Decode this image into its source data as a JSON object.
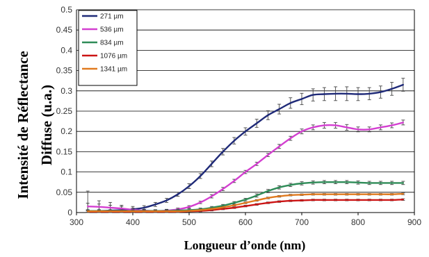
{
  "chart_data": {
    "type": "line",
    "xlabel": "Longueur d’onde (nm)",
    "ylabel_line1": "Intensité de Réflectance",
    "ylabel_line2": "Diffuse (u.a.)",
    "xlim": [
      300,
      900
    ],
    "ylim": [
      0,
      0.5
    ],
    "xticks": [
      "300",
      "400",
      "500",
      "600",
      "700",
      "800",
      "900"
    ],
    "yticks": [
      "0",
      "0.05",
      "0.1",
      "0.15",
      "0.2",
      "0.25",
      "0.3",
      "0.35",
      "0.4",
      "0.45",
      "0.5"
    ],
    "grid": "horizontal",
    "legend": "top-left",
    "series": [
      {
        "name": "271 µm",
        "color": "#1f2a78",
        "x": [
          320,
          340,
          360,
          380,
          400,
          420,
          440,
          460,
          480,
          500,
          520,
          540,
          560,
          580,
          600,
          620,
          640,
          660,
          680,
          700,
          720,
          740,
          760,
          780,
          800,
          820,
          840,
          860,
          880
        ],
        "y": [
          0.003,
          0.004,
          0.005,
          0.006,
          0.008,
          0.012,
          0.02,
          0.03,
          0.045,
          0.065,
          0.09,
          0.12,
          0.15,
          0.177,
          0.2,
          0.22,
          0.24,
          0.255,
          0.27,
          0.28,
          0.29,
          0.292,
          0.293,
          0.293,
          0.292,
          0.293,
          0.297,
          0.305,
          0.315
        ],
        "err": [
          0.05,
          0.025,
          0.02,
          0.012,
          0.007,
          0.005,
          0.005,
          0.005,
          0.005,
          0.006,
          0.006,
          0.007,
          0.008,
          0.008,
          0.009,
          0.01,
          0.011,
          0.012,
          0.013,
          0.014,
          0.015,
          0.016,
          0.017,
          0.017,
          0.016,
          0.015,
          0.015,
          0.016,
          0.016
        ]
      },
      {
        "name": "536 µm",
        "color": "#d33fd0",
        "x": [
          320,
          340,
          360,
          380,
          400,
          420,
          440,
          460,
          480,
          500,
          520,
          540,
          560,
          580,
          600,
          620,
          640,
          660,
          680,
          700,
          720,
          740,
          760,
          780,
          800,
          820,
          840,
          860,
          880
        ],
        "y": [
          0.015,
          0.014,
          0.012,
          0.01,
          0.007,
          0.005,
          0.004,
          0.005,
          0.008,
          0.014,
          0.025,
          0.04,
          0.058,
          0.078,
          0.1,
          0.12,
          0.142,
          0.163,
          0.183,
          0.2,
          0.21,
          0.215,
          0.215,
          0.21,
          0.205,
          0.205,
          0.21,
          0.215,
          0.222
        ],
        "err": [
          0.008,
          0.007,
          0.006,
          0.005,
          0.004,
          0.003,
          0.003,
          0.003,
          0.003,
          0.003,
          0.003,
          0.004,
          0.004,
          0.004,
          0.004,
          0.004,
          0.004,
          0.005,
          0.005,
          0.006,
          0.006,
          0.007,
          0.007,
          0.007,
          0.006,
          0.006,
          0.006,
          0.006,
          0.006
        ]
      },
      {
        "name": "834 µm",
        "color": "#2e8b57",
        "x": [
          320,
          340,
          360,
          380,
          400,
          420,
          440,
          460,
          480,
          500,
          520,
          540,
          560,
          580,
          600,
          620,
          640,
          660,
          680,
          700,
          720,
          740,
          760,
          780,
          800,
          820,
          840,
          860,
          880
        ],
        "y": [
          0.004,
          0.004,
          0.004,
          0.004,
          0.004,
          0.004,
          0.004,
          0.004,
          0.005,
          0.006,
          0.008,
          0.012,
          0.017,
          0.024,
          0.032,
          0.042,
          0.053,
          0.062,
          0.068,
          0.072,
          0.074,
          0.075,
          0.075,
          0.075,
          0.074,
          0.073,
          0.073,
          0.073,
          0.073
        ],
        "err": [
          0.003,
          0.003,
          0.003,
          0.003,
          0.003,
          0.003,
          0.003,
          0.003,
          0.003,
          0.003,
          0.003,
          0.003,
          0.003,
          0.003,
          0.003,
          0.004,
          0.004,
          0.004,
          0.004,
          0.004,
          0.004,
          0.004,
          0.004,
          0.004,
          0.004,
          0.004,
          0.004,
          0.004,
          0.004
        ]
      },
      {
        "name": "1076 µm",
        "color": "#cc1414",
        "x": [
          320,
          340,
          360,
          380,
          400,
          420,
          440,
          460,
          480,
          500,
          520,
          540,
          560,
          580,
          600,
          620,
          640,
          660,
          680,
          700,
          720,
          740,
          760,
          780,
          800,
          820,
          840,
          860,
          880
        ],
        "y": [
          0.002,
          0.002,
          0.002,
          0.002,
          0.002,
          0.002,
          0.002,
          0.002,
          0.002,
          0.003,
          0.004,
          0.006,
          0.009,
          0.012,
          0.016,
          0.02,
          0.024,
          0.027,
          0.029,
          0.03,
          0.031,
          0.031,
          0.031,
          0.031,
          0.031,
          0.031,
          0.031,
          0.031,
          0.032
        ],
        "err": [
          0.002,
          0.002,
          0.002,
          0.002,
          0.002,
          0.002,
          0.002,
          0.002,
          0.002,
          0.002,
          0.002,
          0.002,
          0.002,
          0.002,
          0.002,
          0.002,
          0.002,
          0.002,
          0.002,
          0.002,
          0.002,
          0.002,
          0.002,
          0.002,
          0.002,
          0.002,
          0.002,
          0.002,
          0.002
        ]
      },
      {
        "name": "1341 µm",
        "color": "#e07a1f",
        "x": [
          320,
          340,
          360,
          380,
          400,
          420,
          440,
          460,
          480,
          500,
          520,
          540,
          560,
          580,
          600,
          620,
          640,
          660,
          680,
          700,
          720,
          740,
          760,
          780,
          800,
          820,
          840,
          860,
          880
        ],
        "y": [
          0.003,
          0.003,
          0.003,
          0.003,
          0.003,
          0.003,
          0.003,
          0.003,
          0.003,
          0.004,
          0.006,
          0.009,
          0.013,
          0.018,
          0.024,
          0.03,
          0.036,
          0.04,
          0.043,
          0.044,
          0.045,
          0.045,
          0.045,
          0.045,
          0.045,
          0.045,
          0.045,
          0.045,
          0.046
        ],
        "err": [
          0.002,
          0.002,
          0.002,
          0.002,
          0.002,
          0.002,
          0.002,
          0.002,
          0.002,
          0.002,
          0.002,
          0.002,
          0.002,
          0.002,
          0.002,
          0.002,
          0.002,
          0.002,
          0.002,
          0.002,
          0.002,
          0.002,
          0.002,
          0.002,
          0.002,
          0.002,
          0.002,
          0.002,
          0.002
        ]
      }
    ]
  }
}
